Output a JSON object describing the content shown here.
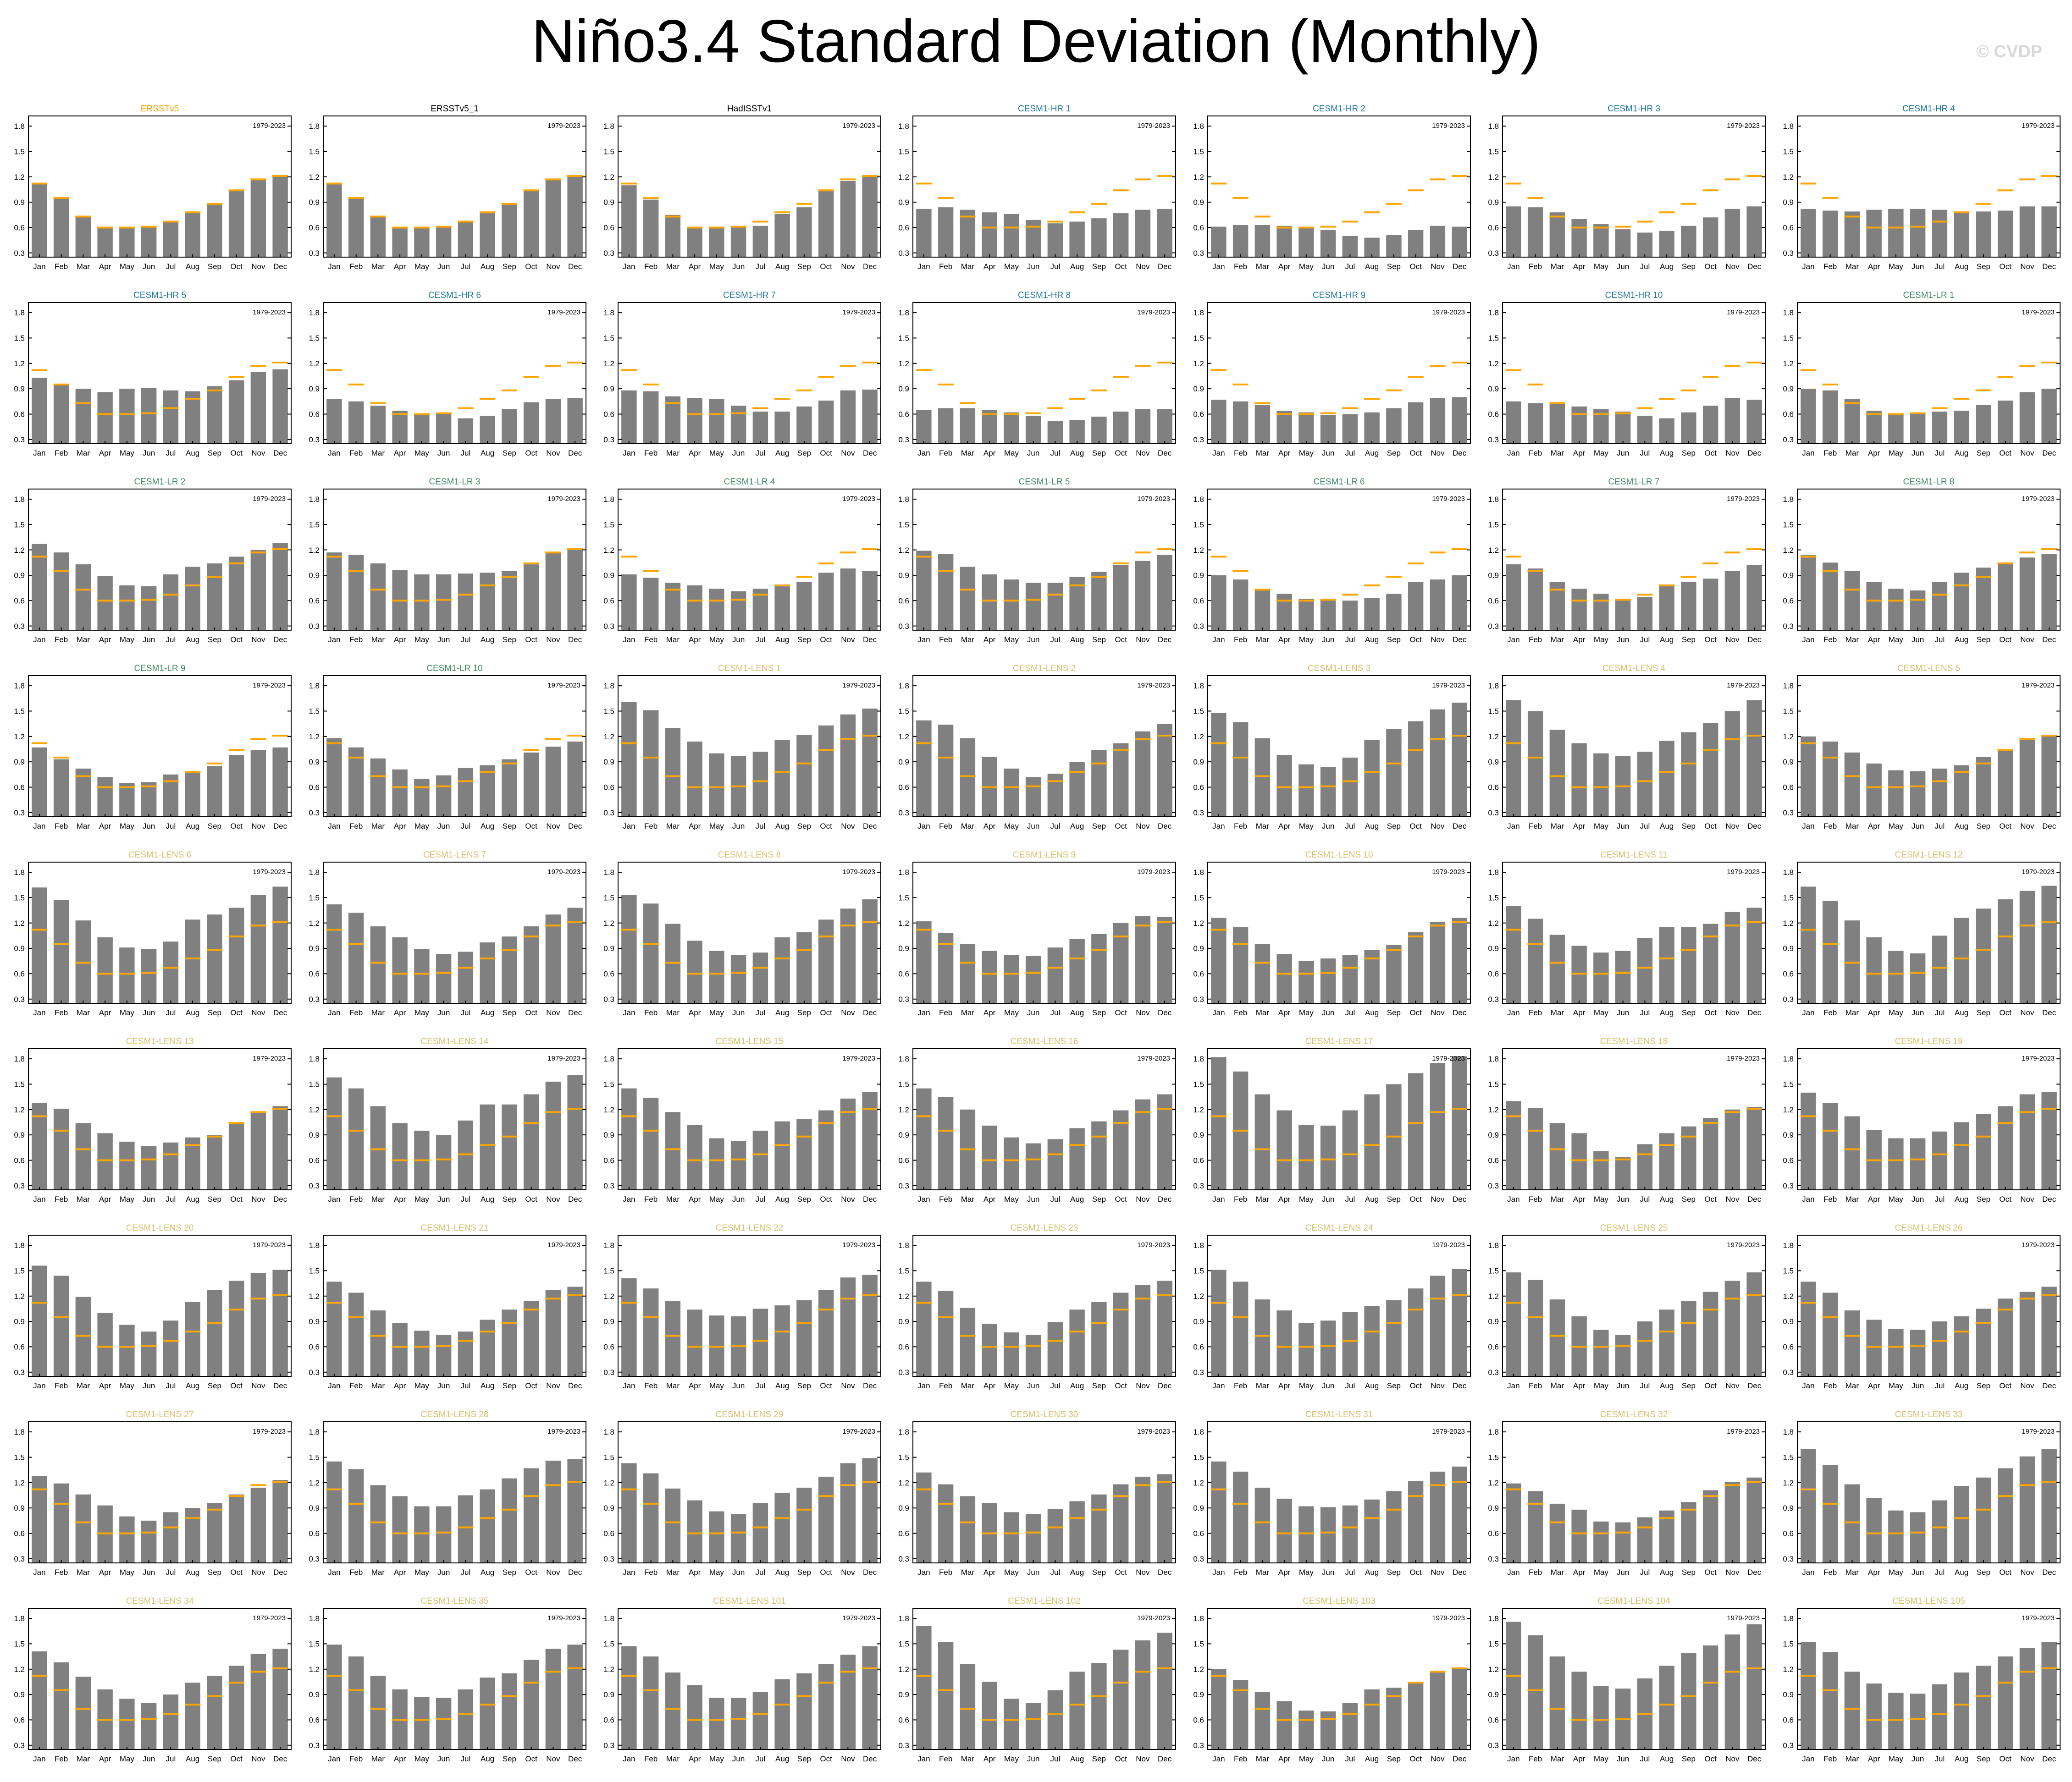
{
  "title": "Niño3.4 Standard Deviation (Monthly)",
  "watermark": "© CVDP",
  "colors": {
    "bar": "#808080",
    "obs_line": "#ffa500",
    "title_obs_ref": "#ffa500",
    "title_obs": "#000000",
    "title_hr": "#1f77a0",
    "title_lr": "#3f8a5f",
    "title_lens": "#d6c06b"
  },
  "chart_data": {
    "type": "bar",
    "layout": "grid of 9 rows x 7 columns of small-multiple bar charts",
    "categories": [
      "Jan",
      "Feb",
      "Mar",
      "Apr",
      "May",
      "Jun",
      "Jul",
      "Aug",
      "Sep",
      "Oct",
      "Nov",
      "Dec"
    ],
    "yticks": [
      "0.3",
      "0.6",
      "0.9",
      "1.2",
      "1.5",
      "1.8"
    ],
    "ylim": [
      0.25,
      1.92
    ],
    "period_label": "1979-2023",
    "reference": {
      "name": "ERSSTv5",
      "values": [
        1.12,
        0.95,
        0.73,
        0.6,
        0.6,
        0.61,
        0.67,
        0.78,
        0.88,
        1.04,
        1.17,
        1.21
      ]
    },
    "panels": [
      {
        "title": "ERSSTv5",
        "group": "obs_ref",
        "values": [
          1.12,
          0.95,
          0.73,
          0.6,
          0.6,
          0.61,
          0.67,
          0.78,
          0.88,
          1.04,
          1.17,
          1.21
        ]
      },
      {
        "title": "ERSSTv5_1",
        "group": "obs",
        "values": [
          1.12,
          0.95,
          0.73,
          0.6,
          0.6,
          0.61,
          0.67,
          0.78,
          0.88,
          1.04,
          1.17,
          1.21
        ]
      },
      {
        "title": "HadISSTv1",
        "group": "obs",
        "values": [
          1.1,
          0.93,
          0.75,
          0.59,
          0.59,
          0.6,
          0.62,
          0.76,
          0.84,
          1.03,
          1.15,
          1.2
        ]
      },
      {
        "title": "CESM1-HR 1",
        "group": "hr",
        "values": [
          0.82,
          0.84,
          0.81,
          0.78,
          0.76,
          0.69,
          0.65,
          0.67,
          0.71,
          0.77,
          0.81,
          0.82
        ]
      },
      {
        "title": "CESM1-HR 2",
        "group": "hr",
        "values": [
          0.61,
          0.63,
          0.63,
          0.62,
          0.6,
          0.57,
          0.5,
          0.48,
          0.51,
          0.57,
          0.62,
          0.61
        ]
      },
      {
        "title": "CESM1-HR 3",
        "group": "hr",
        "values": [
          0.85,
          0.84,
          0.78,
          0.7,
          0.64,
          0.58,
          0.54,
          0.56,
          0.62,
          0.72,
          0.82,
          0.85
        ]
      },
      {
        "title": "CESM1-HR 4",
        "group": "hr",
        "values": [
          0.82,
          0.8,
          0.79,
          0.81,
          0.82,
          0.82,
          0.81,
          0.78,
          0.79,
          0.8,
          0.85,
          0.85
        ]
      },
      {
        "title": "CESM1-HR 5",
        "group": "hr",
        "values": [
          1.03,
          0.96,
          0.9,
          0.86,
          0.9,
          0.91,
          0.88,
          0.87,
          0.93,
          1.0,
          1.1,
          1.13
        ]
      },
      {
        "title": "CESM1-HR 6",
        "group": "hr",
        "values": [
          0.78,
          0.75,
          0.7,
          0.64,
          0.61,
          0.6,
          0.55,
          0.58,
          0.66,
          0.74,
          0.78,
          0.79
        ]
      },
      {
        "title": "CESM1-HR 7",
        "group": "hr",
        "values": [
          0.88,
          0.87,
          0.81,
          0.79,
          0.78,
          0.7,
          0.63,
          0.63,
          0.69,
          0.76,
          0.88,
          0.89
        ]
      },
      {
        "title": "CESM1-HR 8",
        "group": "hr",
        "values": [
          0.65,
          0.67,
          0.67,
          0.65,
          0.62,
          0.58,
          0.52,
          0.53,
          0.57,
          0.63,
          0.66,
          0.66
        ]
      },
      {
        "title": "CESM1-HR 9",
        "group": "hr",
        "values": [
          0.77,
          0.75,
          0.71,
          0.64,
          0.62,
          0.59,
          0.6,
          0.62,
          0.67,
          0.74,
          0.79,
          0.8
        ]
      },
      {
        "title": "CESM1-HR 10",
        "group": "hr",
        "values": [
          0.75,
          0.73,
          0.72,
          0.69,
          0.66,
          0.63,
          0.58,
          0.55,
          0.62,
          0.7,
          0.79,
          0.77
        ]
      },
      {
        "title": "CESM1-LR 1",
        "group": "lr",
        "values": [
          0.9,
          0.88,
          0.78,
          0.64,
          0.61,
          0.61,
          0.63,
          0.64,
          0.71,
          0.76,
          0.86,
          0.9
        ]
      },
      {
        "title": "CESM1-LR 2",
        "group": "lr",
        "values": [
          1.27,
          1.17,
          1.03,
          0.89,
          0.78,
          0.77,
          0.91,
          1.0,
          1.04,
          1.12,
          1.2,
          1.28
        ]
      },
      {
        "title": "CESM1-LR 3",
        "group": "lr",
        "values": [
          1.17,
          1.14,
          1.04,
          0.96,
          0.91,
          0.91,
          0.92,
          0.93,
          0.95,
          1.03,
          1.17,
          1.2
        ]
      },
      {
        "title": "CESM1-LR 4",
        "group": "lr",
        "values": [
          0.91,
          0.87,
          0.81,
          0.78,
          0.74,
          0.71,
          0.74,
          0.77,
          0.82,
          0.93,
          0.98,
          0.95
        ]
      },
      {
        "title": "CESM1-LR 5",
        "group": "lr",
        "values": [
          1.19,
          1.15,
          1.0,
          0.91,
          0.85,
          0.81,
          0.81,
          0.88,
          0.94,
          1.02,
          1.07,
          1.14
        ]
      },
      {
        "title": "CESM1-LR 6",
        "group": "lr",
        "values": [
          0.9,
          0.85,
          0.74,
          0.68,
          0.62,
          0.6,
          0.6,
          0.63,
          0.68,
          0.82,
          0.85,
          0.9
        ]
      },
      {
        "title": "CESM1-LR 7",
        "group": "lr",
        "values": [
          1.03,
          0.98,
          0.82,
          0.74,
          0.68,
          0.61,
          0.64,
          0.79,
          0.82,
          0.86,
          0.95,
          1.02
        ]
      },
      {
        "title": "CESM1-LR 8",
        "group": "lr",
        "values": [
          1.14,
          1.05,
          0.95,
          0.82,
          0.74,
          0.72,
          0.82,
          0.93,
          0.99,
          1.05,
          1.11,
          1.15
        ]
      },
      {
        "title": "CESM1-LR 9",
        "group": "lr",
        "values": [
          1.07,
          0.93,
          0.82,
          0.72,
          0.65,
          0.66,
          0.75,
          0.78,
          0.85,
          0.98,
          1.04,
          1.07
        ]
      },
      {
        "title": "CESM1-LR 10",
        "group": "lr",
        "values": [
          1.18,
          1.07,
          0.94,
          0.81,
          0.7,
          0.74,
          0.83,
          0.86,
          0.93,
          1.01,
          1.08,
          1.14
        ]
      },
      {
        "title": "CESM1-LENS 1",
        "group": "lens",
        "values": [
          1.61,
          1.51,
          1.3,
          1.14,
          1.0,
          0.97,
          1.02,
          1.16,
          1.22,
          1.33,
          1.46,
          1.53
        ]
      },
      {
        "title": "CESM1-LENS 2",
        "group": "lens",
        "values": [
          1.39,
          1.34,
          1.18,
          0.96,
          0.82,
          0.72,
          0.76,
          0.9,
          1.04,
          1.12,
          1.26,
          1.35
        ]
      },
      {
        "title": "CESM1-LENS 3",
        "group": "lens",
        "values": [
          1.48,
          1.37,
          1.18,
          0.98,
          0.87,
          0.84,
          0.95,
          1.16,
          1.29,
          1.38,
          1.52,
          1.6
        ]
      },
      {
        "title": "CESM1-LENS 4",
        "group": "lens",
        "values": [
          1.63,
          1.5,
          1.28,
          1.12,
          1.0,
          0.97,
          1.02,
          1.15,
          1.25,
          1.36,
          1.5,
          1.63
        ]
      },
      {
        "title": "CESM1-LENS 5",
        "group": "lens",
        "values": [
          1.2,
          1.14,
          1.01,
          0.88,
          0.8,
          0.79,
          0.82,
          0.86,
          0.96,
          1.05,
          1.16,
          1.2
        ]
      },
      {
        "title": "CESM1-LENS 6",
        "group": "lens",
        "values": [
          1.62,
          1.47,
          1.23,
          1.03,
          0.91,
          0.89,
          0.98,
          1.24,
          1.3,
          1.38,
          1.53,
          1.63
        ]
      },
      {
        "title": "CESM1-LENS 7",
        "group": "lens",
        "values": [
          1.42,
          1.32,
          1.16,
          1.03,
          0.89,
          0.83,
          0.86,
          0.97,
          1.04,
          1.16,
          1.3,
          1.38
        ]
      },
      {
        "title": "CESM1-LENS 8",
        "group": "lens",
        "values": [
          1.53,
          1.43,
          1.19,
          0.99,
          0.87,
          0.82,
          0.85,
          1.03,
          1.09,
          1.24,
          1.37,
          1.48
        ]
      },
      {
        "title": "CESM1-LENS 9",
        "group": "lens",
        "values": [
          1.22,
          1.08,
          0.95,
          0.87,
          0.82,
          0.81,
          0.91,
          1.01,
          1.07,
          1.2,
          1.28,
          1.27
        ]
      },
      {
        "title": "CESM1-LENS 10",
        "group": "lens",
        "values": [
          1.26,
          1.15,
          0.95,
          0.83,
          0.75,
          0.78,
          0.82,
          0.88,
          0.94,
          1.09,
          1.21,
          1.26
        ]
      },
      {
        "title": "CESM1-LENS 11",
        "group": "lens",
        "values": [
          1.4,
          1.25,
          1.06,
          0.93,
          0.85,
          0.87,
          1.02,
          1.15,
          1.15,
          1.19,
          1.33,
          1.38
        ]
      },
      {
        "title": "CESM1-LENS 12",
        "group": "lens",
        "values": [
          1.63,
          1.46,
          1.23,
          1.03,
          0.87,
          0.84,
          1.05,
          1.26,
          1.37,
          1.48,
          1.58,
          1.64
        ]
      },
      {
        "title": "CESM1-LENS 13",
        "group": "lens",
        "values": [
          1.28,
          1.21,
          1.04,
          0.92,
          0.82,
          0.77,
          0.81,
          0.87,
          0.9,
          1.05,
          1.17,
          1.24
        ]
      },
      {
        "title": "CESM1-LENS 14",
        "group": "lens",
        "values": [
          1.58,
          1.45,
          1.24,
          1.04,
          0.95,
          0.9,
          1.07,
          1.26,
          1.26,
          1.38,
          1.53,
          1.61
        ]
      },
      {
        "title": "CESM1-LENS 15",
        "group": "lens",
        "values": [
          1.45,
          1.34,
          1.17,
          1.02,
          0.86,
          0.83,
          0.95,
          1.06,
          1.09,
          1.19,
          1.33,
          1.41
        ]
      },
      {
        "title": "CESM1-LENS 16",
        "group": "lens",
        "values": [
          1.45,
          1.35,
          1.2,
          1.01,
          0.87,
          0.8,
          0.85,
          0.98,
          1.06,
          1.19,
          1.32,
          1.38
        ]
      },
      {
        "title": "CESM1-LENS 17",
        "group": "lens",
        "values": [
          1.82,
          1.65,
          1.38,
          1.19,
          1.02,
          1.01,
          1.19,
          1.38,
          1.5,
          1.63,
          1.75,
          1.83
        ]
      },
      {
        "title": "CESM1-LENS 18",
        "group": "lens",
        "values": [
          1.3,
          1.22,
          1.04,
          0.92,
          0.71,
          0.64,
          0.79,
          0.92,
          1.0,
          1.1,
          1.2,
          1.23
        ]
      },
      {
        "title": "CESM1-LENS 19",
        "group": "lens",
        "values": [
          1.4,
          1.28,
          1.12,
          0.96,
          0.86,
          0.86,
          0.94,
          1.05,
          1.15,
          1.24,
          1.38,
          1.41
        ]
      },
      {
        "title": "CESM1-LENS 20",
        "group": "lens",
        "values": [
          1.56,
          1.44,
          1.19,
          1.0,
          0.86,
          0.78,
          0.91,
          1.13,
          1.27,
          1.38,
          1.47,
          1.51
        ]
      },
      {
        "title": "CESM1-LENS 21",
        "group": "lens",
        "values": [
          1.37,
          1.24,
          1.03,
          0.88,
          0.79,
          0.74,
          0.78,
          0.92,
          1.04,
          1.14,
          1.27,
          1.31
        ]
      },
      {
        "title": "CESM1-LENS 22",
        "group": "lens",
        "values": [
          1.41,
          1.29,
          1.14,
          1.04,
          0.97,
          0.96,
          1.05,
          1.09,
          1.15,
          1.27,
          1.42,
          1.45
        ]
      },
      {
        "title": "CESM1-LENS 23",
        "group": "lens",
        "values": [
          1.37,
          1.26,
          1.06,
          0.87,
          0.77,
          0.74,
          0.89,
          1.04,
          1.13,
          1.24,
          1.33,
          1.38
        ]
      },
      {
        "title": "CESM1-LENS 24",
        "group": "lens",
        "values": [
          1.51,
          1.37,
          1.16,
          1.03,
          0.88,
          0.91,
          1.01,
          1.08,
          1.15,
          1.29,
          1.44,
          1.52
        ]
      },
      {
        "title": "CESM1-LENS 25",
        "group": "lens",
        "values": [
          1.48,
          1.39,
          1.16,
          0.96,
          0.8,
          0.74,
          0.9,
          1.04,
          1.14,
          1.25,
          1.38,
          1.48
        ]
      },
      {
        "title": "CESM1-LENS 26",
        "group": "lens",
        "values": [
          1.37,
          1.24,
          1.03,
          0.92,
          0.81,
          0.8,
          0.9,
          0.96,
          1.05,
          1.17,
          1.25,
          1.31
        ]
      },
      {
        "title": "CESM1-LENS 27",
        "group": "lens",
        "values": [
          1.28,
          1.19,
          1.06,
          0.93,
          0.8,
          0.75,
          0.85,
          0.9,
          0.96,
          1.06,
          1.14,
          1.23
        ]
      },
      {
        "title": "CESM1-LENS 28",
        "group": "lens",
        "values": [
          1.45,
          1.36,
          1.17,
          1.04,
          0.92,
          0.92,
          1.05,
          1.12,
          1.25,
          1.37,
          1.46,
          1.48
        ]
      },
      {
        "title": "CESM1-LENS 29",
        "group": "lens",
        "values": [
          1.43,
          1.31,
          1.13,
          0.99,
          0.86,
          0.83,
          0.96,
          1.08,
          1.14,
          1.27,
          1.43,
          1.49
        ]
      },
      {
        "title": "CESM1-LENS 30",
        "group": "lens",
        "values": [
          1.32,
          1.18,
          1.04,
          0.96,
          0.85,
          0.83,
          0.89,
          0.98,
          1.06,
          1.18,
          1.27,
          1.3
        ]
      },
      {
        "title": "CESM1-LENS 31",
        "group": "lens",
        "values": [
          1.45,
          1.33,
          1.14,
          1.01,
          0.92,
          0.91,
          0.93,
          1.0,
          1.1,
          1.22,
          1.33,
          1.39
        ]
      },
      {
        "title": "CESM1-LENS 32",
        "group": "lens",
        "values": [
          1.19,
          1.1,
          0.95,
          0.88,
          0.74,
          0.73,
          0.79,
          0.87,
          0.97,
          1.11,
          1.21,
          1.26
        ]
      },
      {
        "title": "CESM1-LENS 33",
        "group": "lens",
        "values": [
          1.6,
          1.41,
          1.18,
          1.02,
          0.87,
          0.85,
          0.99,
          1.16,
          1.26,
          1.37,
          1.51,
          1.6
        ]
      },
      {
        "title": "CESM1-LENS 34",
        "group": "lens",
        "values": [
          1.41,
          1.28,
          1.11,
          0.96,
          0.85,
          0.8,
          0.9,
          1.04,
          1.12,
          1.24,
          1.38,
          1.44
        ]
      },
      {
        "title": "CESM1-LENS 35",
        "group": "lens",
        "values": [
          1.49,
          1.35,
          1.12,
          0.96,
          0.87,
          0.86,
          0.96,
          1.1,
          1.15,
          1.31,
          1.44,
          1.49
        ]
      },
      {
        "title": "CESM1-LENS 101",
        "group": "lens",
        "values": [
          1.47,
          1.35,
          1.16,
          1.01,
          0.86,
          0.86,
          0.93,
          1.08,
          1.15,
          1.26,
          1.37,
          1.47
        ]
      },
      {
        "title": "CESM1-LENS 102",
        "group": "lens",
        "values": [
          1.71,
          1.52,
          1.26,
          1.05,
          0.85,
          0.8,
          0.95,
          1.17,
          1.27,
          1.43,
          1.54,
          1.63
        ]
      },
      {
        "title": "CESM1-LENS 103",
        "group": "lens",
        "values": [
          1.2,
          1.07,
          0.93,
          0.82,
          0.71,
          0.7,
          0.8,
          0.96,
          0.98,
          1.05,
          1.16,
          1.21
        ]
      },
      {
        "title": "CESM1-LENS 104",
        "group": "lens",
        "values": [
          1.76,
          1.6,
          1.35,
          1.17,
          1.0,
          0.97,
          1.09,
          1.24,
          1.39,
          1.48,
          1.61,
          1.73
        ]
      },
      {
        "title": "CESM1-LENS 105",
        "group": "lens",
        "values": [
          1.52,
          1.4,
          1.17,
          1.03,
          0.92,
          0.91,
          1.02,
          1.16,
          1.24,
          1.35,
          1.45,
          1.52
        ]
      }
    ]
  }
}
